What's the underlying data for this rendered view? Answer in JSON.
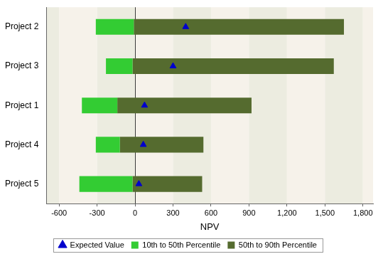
{
  "chart_data": {
    "type": "bar",
    "orientation": "horizontal",
    "x_label": "NPV",
    "categories": [
      "Project 2",
      "Project 3",
      "Project 1",
      "Project 4",
      "Project 5"
    ],
    "series": [
      {
        "name": "10th to 50th Percentile",
        "color": "#33cc33",
        "type": "bar",
        "values": [
          [
            -310,
            -10
          ],
          [
            -230,
            -20
          ],
          [
            -420,
            -140
          ],
          [
            -310,
            -120
          ],
          [
            -440,
            -20
          ]
        ]
      },
      {
        "name": "50th to 90th Percentile",
        "color": "#556b2f",
        "type": "bar",
        "values": [
          [
            -10,
            1650
          ],
          [
            -20,
            1570
          ],
          [
            -140,
            920
          ],
          [
            -120,
            540
          ],
          [
            -20,
            530
          ]
        ]
      },
      {
        "name": "Expected Value",
        "color": "#0000cc",
        "type": "scatter",
        "marker": "triangle",
        "values": [
          400,
          300,
          75,
          65,
          30
        ]
      }
    ],
    "xlim": [
      -700,
      1880
    ],
    "xticks": [
      -600,
      -300,
      0,
      300,
      600,
      900,
      1200,
      1500,
      1800
    ],
    "grid": true,
    "legend": "bottom"
  }
}
